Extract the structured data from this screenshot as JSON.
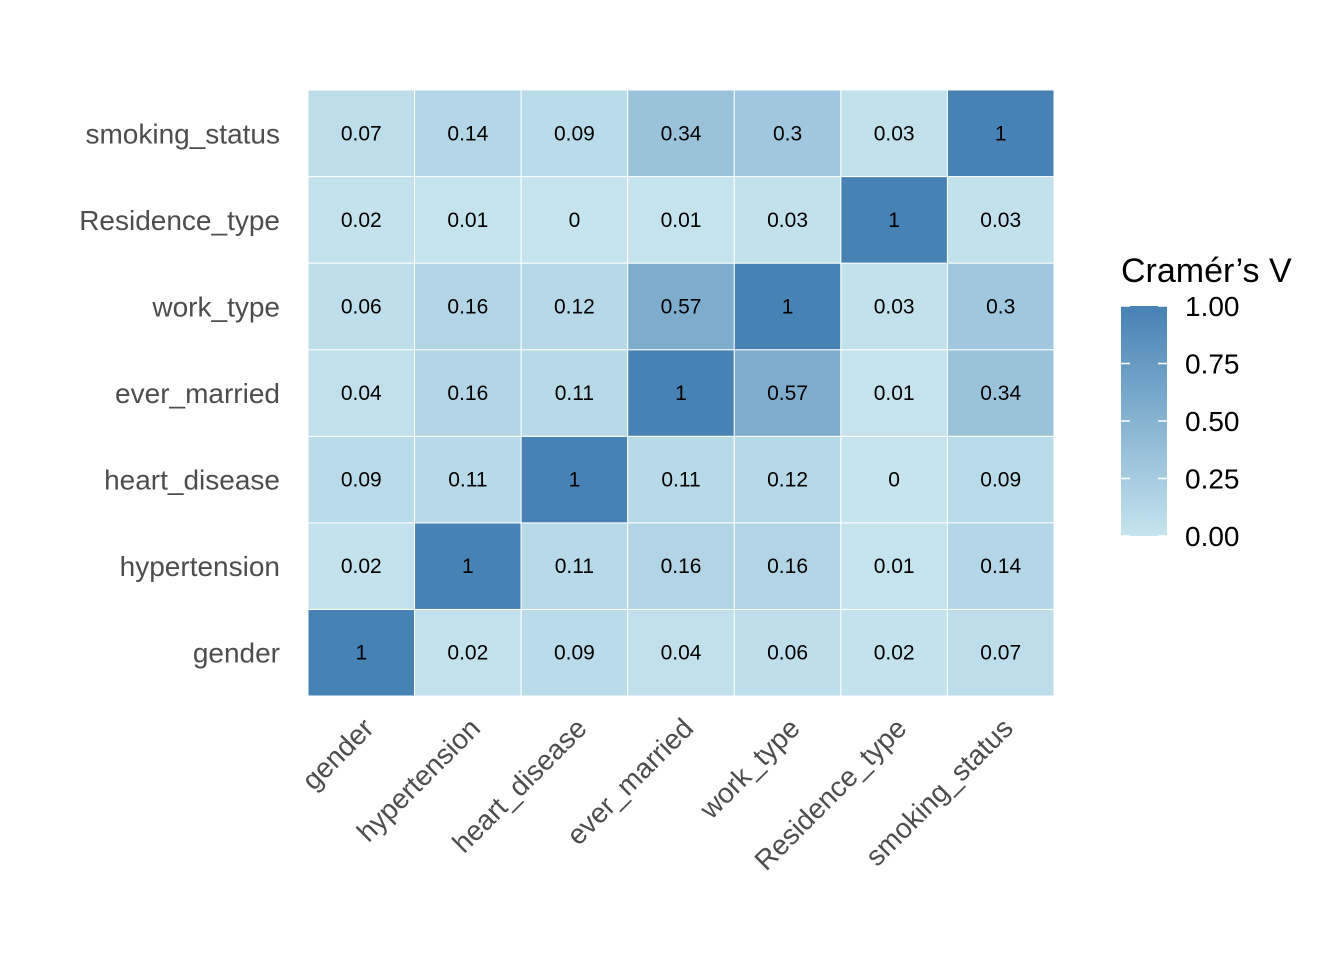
{
  "chart_data": {
    "type": "heatmap",
    "x_categories": [
      "gender",
      "hypertension",
      "heart_disease",
      "ever_married",
      "work_type",
      "Residence_type",
      "smoking_status"
    ],
    "y_categories": [
      "gender",
      "hypertension",
      "heart_disease",
      "ever_married",
      "work_type",
      "Residence_type",
      "smoking_status"
    ],
    "values": [
      [
        1,
        0.02,
        0.09,
        0.04,
        0.06,
        0.02,
        0.07
      ],
      [
        0.02,
        1,
        0.11,
        0.16,
        0.16,
        0.01,
        0.14
      ],
      [
        0.09,
        0.11,
        1,
        0.11,
        0.12,
        0,
        0.09
      ],
      [
        0.04,
        0.16,
        0.11,
        1,
        0.57,
        0.01,
        0.34
      ],
      [
        0.06,
        0.16,
        0.12,
        0.57,
        1,
        0.03,
        0.3
      ],
      [
        0.02,
        0.01,
        0,
        0.01,
        0.03,
        1,
        0.03
      ],
      [
        0.07,
        0.14,
        0.09,
        0.34,
        0.3,
        0.03,
        1
      ]
    ],
    "legend": {
      "title": "Cramér’s V",
      "ticks": [
        "0.00",
        "0.25",
        "0.50",
        "0.75",
        "1.00"
      ],
      "tick_values": [
        0,
        0.25,
        0.5,
        0.75,
        1
      ],
      "placement": "right"
    },
    "color_low": "#c6e4ee",
    "color_high": "#4682b4",
    "value_range": [
      0,
      1
    ],
    "title": "",
    "xlabel": "",
    "ylabel": ""
  }
}
